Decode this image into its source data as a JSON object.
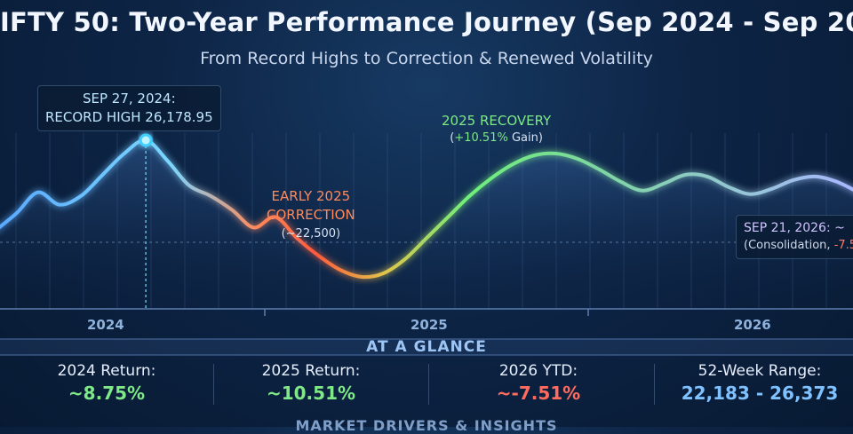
{
  "header": {
    "title": "IFTY 50: Two-Year Performance Journey (Sep 2024 - Sep 202",
    "subtitle": "From Record Highs to Correction & Renewed Volatility"
  },
  "chart_data": {
    "type": "line",
    "x_axis_labels": [
      "2024",
      "2025",
      "2026"
    ],
    "series": [
      {
        "values": [
          23600,
          24100,
          24700,
          24350,
          24600,
          25200,
          25800,
          26178.95,
          25600,
          24900,
          24600,
          24200,
          23700,
          24000,
          23400,
          22900,
          22500,
          22300,
          22400,
          22800,
          23400,
          24000,
          24600,
          25100,
          25500,
          25750,
          25800,
          25650,
          25350,
          25000,
          24750,
          24950,
          25200,
          25150,
          24850,
          24650,
          24800,
          25050,
          25150,
          25000,
          24700
        ]
      }
    ],
    "annotations": {
      "record_high": {
        "line1": "SEP 27, 2024:",
        "line2": "RECORD HIGH 26,178.95"
      },
      "correction": {
        "line1": "EARLY 2025",
        "line2": "CORRECTION",
        "line3": "(~22,500)"
      },
      "recovery": {
        "line1": "2025 RECOVERY",
        "line2_pre": "(",
        "line2_hl": "+10.51%",
        "line2_post": " Gain)"
      },
      "latest": {
        "line1": "SEP 21, 2026: ~",
        "line2_pre": "(Consolidation, ",
        "line2_neg": "-7.5"
      }
    },
    "grid": true
  },
  "at_a_glance": {
    "title": "AT A GLANCE",
    "stats": [
      {
        "label": "2024 Return:",
        "value": "~8.75%",
        "color": "#7fe887"
      },
      {
        "label": "2025 Return:",
        "value": "~10.51%",
        "color": "#7fe887"
      },
      {
        "label": "2026 YTD:",
        "value": "~-7.51%",
        "color": "#ff6b5e"
      },
      {
        "label": "52-Week Range:",
        "value": "22,183 - 26,373",
        "color": "#7fc2ff"
      }
    ]
  },
  "drivers": {
    "title": "MARKET DRIVERS & INSIGHTS"
  },
  "colors": {
    "background": "#0d2445",
    "line_start": "#4fb5ff",
    "line_correction": "#ff6a4d",
    "line_recovery": "#6ef07a",
    "line_end": "#9fb8ff"
  }
}
